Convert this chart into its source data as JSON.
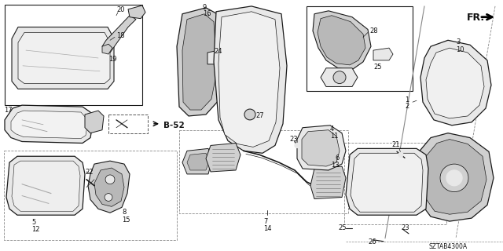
{
  "bg_color": "#ffffff",
  "line_color": "#1a1a1a",
  "label_color": "#111111",
  "diagram_id": "SZTAB4300A",
  "fr_label": "FR.",
  "b52_label": "B-52",
  "font_size": 6.0,
  "lw": 0.7
}
